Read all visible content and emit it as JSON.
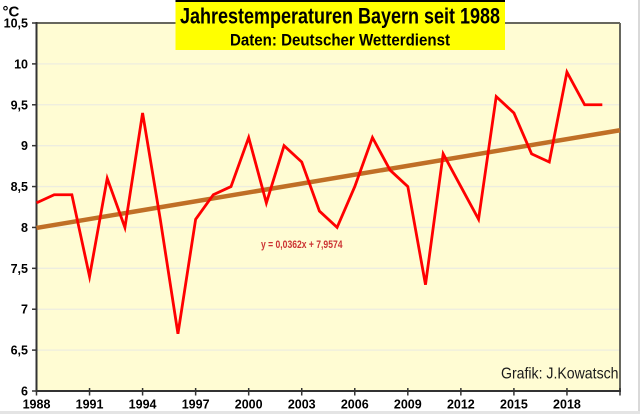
{
  "page": {
    "background": "#ffffff"
  },
  "title_box": {
    "title": "Jahrestemperaturen Bayern seit 1988",
    "subtitle": "Daten: Deutscher Wetterdienst",
    "bg_color": "#ffff00",
    "text_color": "#000000"
  },
  "unit_label": "°C",
  "credit_label": "Grafik: J.Kowatsch",
  "trend_equation_label": "y = 0,0362x + 7,9574",
  "colors": {
    "plot_background": "#fffcd3",
    "gridline": "#ededdf",
    "axis": "#333333",
    "plot_border": "#67675e",
    "series_line": "#ff0000",
    "trend_line": "#c06f26",
    "equation_text": "#cc3333",
    "label_text": "#000000"
  },
  "chart_data": {
    "type": "line",
    "title": "Jahrestemperaturen Bayern seit 1988",
    "subtitle": "Daten: Deutscher Wetterdienst",
    "xlabel": "",
    "ylabel": "°C",
    "xlim": [
      1988,
      2021
    ],
    "ylim": [
      6,
      10.5
    ],
    "grid": true,
    "legend_position": "none",
    "x": [
      1988,
      1989,
      1990,
      1991,
      1992,
      1993,
      1994,
      1995,
      1996,
      1997,
      1998,
      1999,
      2000,
      2001,
      2002,
      2003,
      2004,
      2005,
      2006,
      2007,
      2008,
      2009,
      2010,
      2011,
      2012,
      2013,
      2014,
      2015,
      2016,
      2017,
      2018,
      2019,
      2020
    ],
    "series": [
      {
        "name": "Jahrestemperatur Bayern (°C)",
        "color": "#ff0000",
        "values": [
          8.3,
          8.4,
          8.4,
          7.4,
          8.6,
          8.0,
          9.4,
          8.1,
          6.7,
          8.1,
          8.4,
          8.5,
          9.1,
          8.3,
          9.0,
          8.8,
          8.2,
          8.0,
          8.5,
          9.1,
          8.7,
          8.5,
          7.3,
          8.9,
          8.5,
          8.1,
          9.6,
          9.4,
          8.9,
          8.8,
          9.9,
          9.5,
          9.5
        ]
      }
    ],
    "trend": {
      "label": "y = 0,0362x + 7,9574",
      "slope": 0.0362,
      "intercept": 7.9574,
      "x_index_origin": 1987,
      "color": "#c06f26",
      "x_range": [
        1988,
        2021
      ]
    },
    "y_ticks": [
      {
        "v": 10.5,
        "label": "10,5"
      },
      {
        "v": 10,
        "label": "10"
      },
      {
        "v": 9.5,
        "label": "9,5"
      },
      {
        "v": 9,
        "label": "9"
      },
      {
        "v": 8.5,
        "label": "8,5"
      },
      {
        "v": 8,
        "label": "8"
      },
      {
        "v": 7.5,
        "label": "7,5"
      },
      {
        "v": 7,
        "label": "7"
      },
      {
        "v": 6.5,
        "label": "6,5"
      },
      {
        "v": 6,
        "label": "6"
      }
    ],
    "x_ticks": [
      {
        "year": 1988,
        "label": "1988"
      },
      {
        "year": 1991,
        "label": "1991"
      },
      {
        "year": 1994,
        "label": "1994"
      },
      {
        "year": 1997,
        "label": "1997"
      },
      {
        "year": 2000,
        "label": "2000"
      },
      {
        "year": 2003,
        "label": "2003"
      },
      {
        "year": 2006,
        "label": "2006"
      },
      {
        "year": 2009,
        "label": "2009"
      },
      {
        "year": 2012,
        "label": "2012"
      },
      {
        "year": 2015,
        "label": "2015"
      },
      {
        "year": 2018,
        "label": "2018"
      },
      {
        "year": 2021,
        "label": ""
      }
    ]
  }
}
